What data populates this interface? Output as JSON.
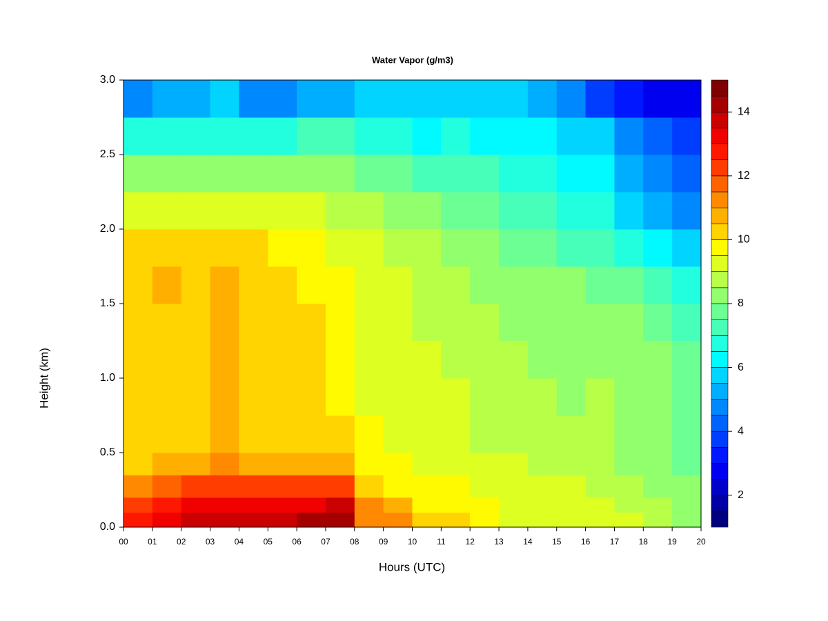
{
  "chart_data": {
    "type": "heatmap",
    "title": "Water Vapor (g/m3)",
    "x_label": "Hours (UTC)",
    "y_label": "Height (km)",
    "x_bins": [
      0,
      1,
      2,
      3,
      4,
      5,
      6,
      7,
      8,
      9,
      10,
      11,
      12,
      13,
      14,
      15,
      16,
      17,
      18,
      19,
      20
    ],
    "y_bins": [
      0,
      0.1,
      0.2,
      0.35,
      0.5,
      0.75,
      1,
      1.25,
      1.5,
      1.75,
      2,
      2.25,
      2.5,
      2.75,
      3
    ],
    "z": [
      [
        12.5,
        13,
        13.5,
        13.5,
        13.5,
        13.5,
        14,
        14,
        11,
        11,
        10,
        10,
        9.5,
        9,
        9,
        9,
        9,
        9,
        8.5,
        8
      ],
      [
        12,
        12.5,
        13,
        13,
        13,
        13,
        13,
        13.5,
        11,
        10.5,
        9.5,
        9.5,
        9.5,
        9,
        9,
        9,
        9,
        8.5,
        8.5,
        8
      ],
      [
        11,
        11.5,
        12,
        12,
        12,
        12,
        12,
        12,
        10,
        9.5,
        9.5,
        9.5,
        9,
        9,
        9,
        9,
        8.5,
        8.5,
        8,
        8
      ],
      [
        10,
        10.5,
        10.5,
        11,
        10.5,
        10.5,
        10.5,
        10.5,
        9.5,
        9.5,
        9,
        9,
        9,
        9,
        8.5,
        8.5,
        8.5,
        8,
        8,
        7.5
      ],
      [
        10,
        10,
        10,
        10.5,
        10,
        10,
        10,
        10,
        9.5,
        9,
        9,
        9,
        8.5,
        8.5,
        8.5,
        8.5,
        8.5,
        8,
        8,
        7.5
      ],
      [
        10,
        10,
        10,
        10.5,
        10,
        10,
        10,
        9.5,
        9,
        9,
        9,
        9,
        8.5,
        8.5,
        8.5,
        8,
        8.5,
        8,
        8,
        7.5
      ],
      [
        10,
        10,
        10,
        10.5,
        10,
        10,
        10,
        9.5,
        9,
        9,
        9,
        8.5,
        8.5,
        8.5,
        8,
        8,
        8,
        8,
        8,
        7.5
      ],
      [
        10,
        10,
        10,
        10.5,
        10,
        10,
        10,
        9.5,
        9,
        9,
        8.5,
        8.5,
        8.5,
        8,
        8,
        8,
        8,
        8,
        7.5,
        7
      ],
      [
        10,
        10.5,
        10,
        10.5,
        10,
        10,
        9.5,
        9.5,
        9,
        9,
        8.5,
        8.5,
        8,
        8,
        8,
        8,
        7.5,
        7.5,
        7,
        6.5
      ],
      [
        10,
        10,
        10,
        10,
        10,
        9.5,
        9.5,
        9,
        9,
        8.5,
        8.5,
        8,
        8,
        7.5,
        7.5,
        7,
        7,
        6.5,
        6,
        5.5
      ],
      [
        9,
        9,
        9,
        9,
        9,
        9,
        9,
        8.5,
        8.5,
        8,
        8,
        7.5,
        7.5,
        7,
        7,
        6.5,
        6.5,
        5.5,
        5,
        4.5
      ],
      [
        8,
        8,
        8,
        8,
        8,
        8,
        8,
        8,
        7.5,
        7.5,
        7,
        7,
        7,
        6.5,
        6.5,
        6,
        6,
        5,
        4.5,
        4
      ],
      [
        6.5,
        6.5,
        6.5,
        6.5,
        6.5,
        6.5,
        7,
        7,
        6.5,
        6.5,
        6,
        6.5,
        6,
        6,
        6,
        5.5,
        5.5,
        4.5,
        4,
        3.5
      ],
      [
        4.5,
        5,
        5,
        5.5,
        4.5,
        4.5,
        5,
        5,
        5.5,
        5.5,
        5.5,
        5.5,
        5.5,
        5.5,
        5,
        4.5,
        3.5,
        3,
        2.5,
        2.5
      ]
    ],
    "xlim": [
      0,
      20
    ],
    "ylim": [
      0,
      3
    ],
    "xticks": [
      {
        "value": 0,
        "label": "00"
      },
      {
        "value": 1,
        "label": "01"
      },
      {
        "value": 2,
        "label": "02"
      },
      {
        "value": 3,
        "label": "03"
      },
      {
        "value": 4,
        "label": "04"
      },
      {
        "value": 5,
        "label": "05"
      },
      {
        "value": 6,
        "label": "06"
      },
      {
        "value": 7,
        "label": "07"
      },
      {
        "value": 8,
        "label": "08"
      },
      {
        "value": 9,
        "label": "09"
      },
      {
        "value": 10,
        "label": "10"
      },
      {
        "value": 11,
        "label": "11"
      },
      {
        "value": 12,
        "label": "12"
      },
      {
        "value": 13,
        "label": "13"
      },
      {
        "value": 14,
        "label": "14"
      },
      {
        "value": 15,
        "label": "15"
      },
      {
        "value": 16,
        "label": "16"
      },
      {
        "value": 17,
        "label": "17"
      },
      {
        "value": 18,
        "label": "18"
      },
      {
        "value": 19,
        "label": "19"
      },
      {
        "value": 20,
        "label": "20"
      }
    ],
    "yticks": [
      {
        "value": 0,
        "label": "0.0"
      },
      {
        "value": 0.5,
        "label": "0.5"
      },
      {
        "value": 1,
        "label": "1.0"
      },
      {
        "value": 1.5,
        "label": "1.5"
      },
      {
        "value": 2,
        "label": "2.0"
      },
      {
        "value": 2.5,
        "label": "2.5"
      },
      {
        "value": 3,
        "label": "3.0"
      }
    ],
    "levels": [
      1,
      1.5,
      2,
      2.5,
      3,
      3.5,
      4,
      4.5,
      5,
      5.5,
      6,
      6.5,
      7,
      7.5,
      8,
      8.5,
      9,
      9.5,
      10,
      10.5,
      11,
      11.5,
      12,
      12.5,
      13,
      13.5,
      14,
      14.5,
      15
    ],
    "colors": [
      "#00007F",
      "#0000A5",
      "#0000CB",
      "#0000F1",
      "#0017FF",
      "#003DFF",
      "#0063FF",
      "#0088FF",
      "#00AEFF",
      "#00D4FF",
      "#00FAFF",
      "#21FFDE",
      "#47FFB8",
      "#6CFF93",
      "#92FF6C",
      "#B8FF47",
      "#DDFF21",
      "#FFFA00",
      "#FFD400",
      "#FFAF00",
      "#FF8900",
      "#FF6300",
      "#FF3D00",
      "#FF1800",
      "#F10000",
      "#CB0000",
      "#A50000",
      "#7F0000"
    ],
    "colorbar_ticks": [
      2,
      4,
      6,
      8,
      10,
      12,
      14
    ]
  }
}
